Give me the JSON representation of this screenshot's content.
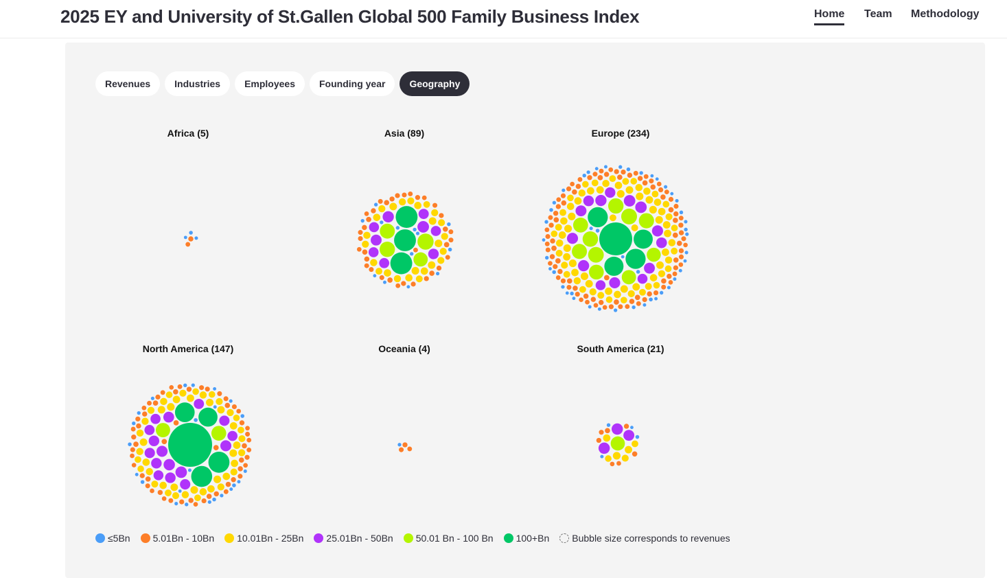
{
  "header": {
    "title": "2025 EY and University of St.Gallen Global 500 Family Business Index",
    "nav": [
      {
        "label": "Home",
        "active": true
      },
      {
        "label": "Team"
      },
      {
        "label": "Methodology"
      }
    ]
  },
  "tabs": [
    {
      "label": "Revenues"
    },
    {
      "label": "Industries"
    },
    {
      "label": "Employees"
    },
    {
      "label": "Founding year"
    },
    {
      "label": "Geography",
      "active": true
    }
  ],
  "chart_data": {
    "type": "packed-bubble",
    "tiers": [
      {
        "key": "t1",
        "label": "≤5Bn",
        "color": "#4a9df8"
      },
      {
        "key": "t2",
        "label": "5.01Bn - 10Bn",
        "color": "#fd7e28"
      },
      {
        "key": "t3",
        "label": "10.01Bn - 25Bn",
        "color": "#ffd800"
      },
      {
        "key": "t4",
        "label": "25.01Bn - 50Bn",
        "color": "#b033fa"
      },
      {
        "key": "t5",
        "label": "50.01 Bn - 100 Bn",
        "color": "#b4f500"
      },
      {
        "key": "t6",
        "label": "100+Bn",
        "color": "#00c766"
      }
    ],
    "size_note": "Bubble size corresponds to revenues",
    "regions": [
      {
        "label": "Africa (5)",
        "name": "Africa",
        "count": 5,
        "tier_counts": {
          "t1": 3,
          "t2": 2,
          "t3": 0,
          "t4": 0,
          "t5": 0,
          "t6": 0
        }
      },
      {
        "label": "Asia (89)",
        "name": "Asia",
        "count": 89,
        "tier_counts": {
          "t1": 13,
          "t2": 35,
          "t3": 25,
          "t4": 9,
          "t5": 4,
          "t6": 3
        }
      },
      {
        "label": "Europe (234)",
        "name": "Europe",
        "count": 234,
        "tier_counts": {
          "t1": 45,
          "t2": 90,
          "t3": 70,
          "t4": 14,
          "t5": 10,
          "t6": 5
        }
      },
      {
        "label": "North America (147)",
        "name": "North America",
        "count": 147,
        "tier_counts": {
          "t1": 24,
          "t2": 55,
          "t3": 45,
          "t4": 16,
          "t5": 2,
          "t6": 5
        }
      },
      {
        "label": "Oceania (4)",
        "name": "Oceania",
        "count": 4,
        "tier_counts": {
          "t1": 1,
          "t2": 3,
          "t3": 0,
          "t4": 0,
          "t5": 0,
          "t6": 0
        }
      },
      {
        "label": "South America (21)",
        "name": "South America",
        "count": 21,
        "tier_counts": {
          "t1": 4,
          "t2": 7,
          "t3": 6,
          "t4": 3,
          "t5": 1,
          "t6": 0
        }
      }
    ]
  }
}
